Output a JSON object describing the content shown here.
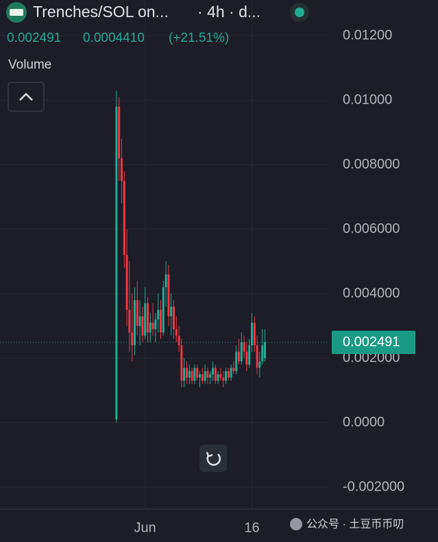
{
  "header": {
    "title": "Trenches/SOL on...",
    "interval": "· 4h · d...",
    "price": "0.002491",
    "change": "0.0004410",
    "change_pct": "(+21.51%)",
    "volume_label": "Volume"
  },
  "watermark": "公众号 · 土豆币币叨",
  "chart_data": {
    "type": "candlestick",
    "up_color": "#22ab94",
    "down_color": "#f23645",
    "ylim": [
      -0.00268,
      0.01311
    ],
    "yticks": [
      {
        "value": 0.012,
        "label": "0.01200"
      },
      {
        "value": 0.01,
        "label": "0.01000"
      },
      {
        "value": 0.008,
        "label": "0.008000"
      },
      {
        "value": 0.006,
        "label": "0.006000"
      },
      {
        "value": 0.004,
        "label": "0.004000"
      },
      {
        "value": 0.002,
        "label": "0.002000"
      },
      {
        "value": 0,
        "label": "0.0000"
      },
      {
        "value": -0.002,
        "label": "-0.002000"
      }
    ],
    "xlim": [
      -44.7,
      81.6
    ],
    "xticks": [
      {
        "value": 11,
        "label": "Jun"
      },
      {
        "value": 52,
        "label": "16"
      }
    ],
    "last_price": 0.002491,
    "ohlc": [
      [
        0.0001,
        0.0103,
        0.0,
        0.0098
      ],
      [
        0.0098,
        0.0101,
        0.0075,
        0.0082
      ],
      [
        0.0082,
        0.0088,
        0.0068,
        0.0075
      ],
      [
        0.0075,
        0.0078,
        0.0048,
        0.0052
      ],
      [
        0.0052,
        0.006,
        0.003,
        0.0035
      ],
      [
        0.0035,
        0.005,
        0.0022,
        0.0028
      ],
      [
        0.0028,
        0.004,
        0.0019,
        0.0024
      ],
      [
        0.0024,
        0.0042,
        0.0021,
        0.0038
      ],
      [
        0.0038,
        0.0044,
        0.0027,
        0.003
      ],
      [
        0.003,
        0.0038,
        0.0024,
        0.0033
      ],
      [
        0.0033,
        0.0036,
        0.0025,
        0.0027
      ],
      [
        0.0027,
        0.0042,
        0.0026,
        0.0037
      ],
      [
        0.0037,
        0.0039,
        0.0025,
        0.0028
      ],
      [
        0.0028,
        0.0034,
        0.0025,
        0.0031
      ],
      [
        0.0031,
        0.0037,
        0.0027,
        0.0029
      ],
      [
        0.0029,
        0.0034,
        0.0025,
        0.0032
      ],
      [
        0.0032,
        0.004,
        0.0028,
        0.0035
      ],
      [
        0.0035,
        0.0038,
        0.0026,
        0.0028
      ],
      [
        0.0028,
        0.0044,
        0.0027,
        0.0042
      ],
      [
        0.0042,
        0.005,
        0.0036,
        0.0046
      ],
      [
        0.0046,
        0.0049,
        0.003,
        0.0033
      ],
      [
        0.0033,
        0.004,
        0.0027,
        0.0036
      ],
      [
        0.0036,
        0.0038,
        0.0026,
        0.0029
      ],
      [
        0.0029,
        0.0033,
        0.0025,
        0.0027
      ],
      [
        0.0027,
        0.003,
        0.0022,
        0.0024
      ],
      [
        0.0024,
        0.0026,
        0.0011,
        0.0013
      ],
      [
        0.0013,
        0.002,
        0.0011,
        0.0017
      ],
      [
        0.0017,
        0.0019,
        0.0012,
        0.0014
      ],
      [
        0.0014,
        0.0018,
        0.0012,
        0.0016
      ],
      [
        0.0016,
        0.0017,
        0.0012,
        0.0013
      ],
      [
        0.0013,
        0.0018,
        0.0012,
        0.0017
      ],
      [
        0.0017,
        0.0018,
        0.0013,
        0.0014
      ],
      [
        0.0014,
        0.0016,
        0.0011,
        0.0015
      ],
      [
        0.0015,
        0.0017,
        0.0012,
        0.0013
      ],
      [
        0.0013,
        0.0018,
        0.0012,
        0.0016
      ],
      [
        0.0016,
        0.0017,
        0.0012,
        0.0014
      ],
      [
        0.0014,
        0.0016,
        0.0012,
        0.0015
      ],
      [
        0.0015,
        0.0019,
        0.0013,
        0.0017
      ],
      [
        0.0017,
        0.0018,
        0.0012,
        0.0013
      ],
      [
        0.0013,
        0.0016,
        0.0012,
        0.0015
      ],
      [
        0.0015,
        0.0017,
        0.0013,
        0.0014
      ],
      [
        0.0014,
        0.0016,
        0.0011,
        0.0013
      ],
      [
        0.0013,
        0.0017,
        0.0012,
        0.0016
      ],
      [
        0.0016,
        0.0017,
        0.0013,
        0.0014
      ],
      [
        0.0014,
        0.0018,
        0.0013,
        0.0017
      ],
      [
        0.0017,
        0.0019,
        0.0015,
        0.0016
      ],
      [
        0.0016,
        0.0024,
        0.0015,
        0.0022
      ],
      [
        0.0022,
        0.0026,
        0.0018,
        0.0019
      ],
      [
        0.0019,
        0.0028,
        0.0018,
        0.0025
      ],
      [
        0.0025,
        0.0027,
        0.002,
        0.0022
      ],
      [
        0.0022,
        0.0025,
        0.0016,
        0.0018
      ],
      [
        0.0018,
        0.0026,
        0.0017,
        0.0024
      ],
      [
        0.0024,
        0.0034,
        0.0022,
        0.0031
      ],
      [
        0.0031,
        0.0033,
        0.0022,
        0.0024
      ],
      [
        0.0024,
        0.0027,
        0.0015,
        0.0017
      ],
      [
        0.0017,
        0.0022,
        0.0014,
        0.0019
      ],
      [
        0.0019,
        0.0029,
        0.0018,
        0.0024
      ],
      [
        0.002,
        0.0029,
        0.0019,
        0.002491
      ]
    ]
  }
}
